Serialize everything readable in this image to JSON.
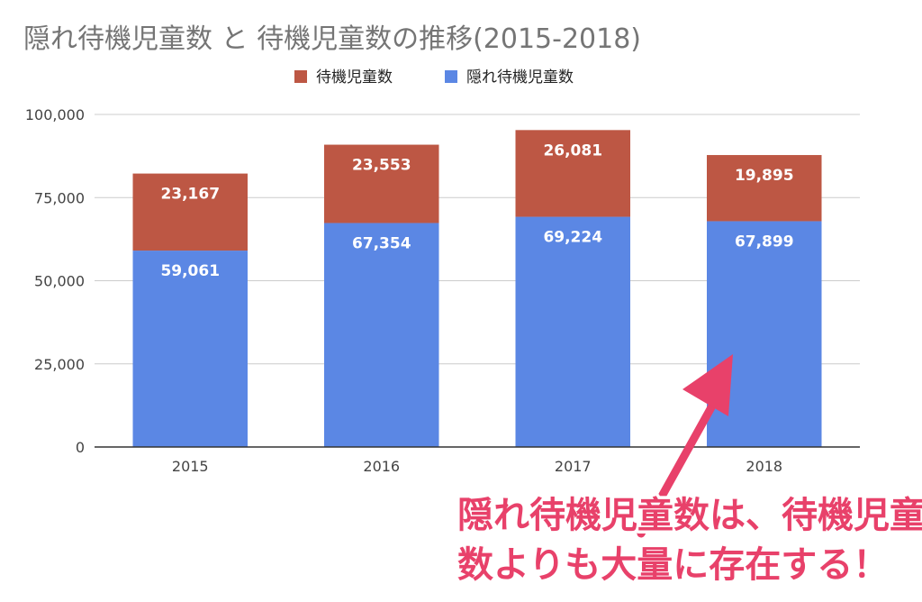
{
  "chart_data": {
    "type": "bar",
    "stacked": true,
    "title": "隠れ待機児童数 と 待機児童数の推移(2015-2018)",
    "categories": [
      "2015",
      "2016",
      "2017",
      "2018"
    ],
    "series": [
      {
        "name": "隠れ待機児童数",
        "values": [
          59061,
          67354,
          69224,
          67899
        ],
        "color": "#5b87e4"
      },
      {
        "name": "待機児童数",
        "values": [
          23167,
          23553,
          26081,
          19895
        ],
        "color": "#bd5744"
      }
    ],
    "data_labels": {
      "隠れ待機児童数": [
        "59,061",
        "67,354",
        "69,224",
        "67,899"
      ],
      "待機児童数": [
        "23,167",
        "23,553",
        "26,081",
        "19,895"
      ]
    },
    "legend": {
      "position": "top",
      "items": [
        {
          "name": "待機児童数",
          "color": "#bd5744"
        },
        {
          "name": "隠れ待機児童数",
          "color": "#5b87e4"
        }
      ]
    },
    "yticks": [
      {
        "value": 0,
        "label": "0"
      },
      {
        "value": 25000,
        "label": "25,000"
      },
      {
        "value": 50000,
        "label": "50,000"
      },
      {
        "value": 75000,
        "label": "75,000"
      },
      {
        "value": 100000,
        "label": "100,000"
      }
    ],
    "ylim": [
      0,
      100000
    ],
    "grid": true,
    "xlabel": "",
    "ylabel": ""
  },
  "annotation": {
    "line1": "隠れ待機児童数は、待機児童",
    "line2": "数よりも大量に存在する！",
    "color": "#e8416a"
  }
}
